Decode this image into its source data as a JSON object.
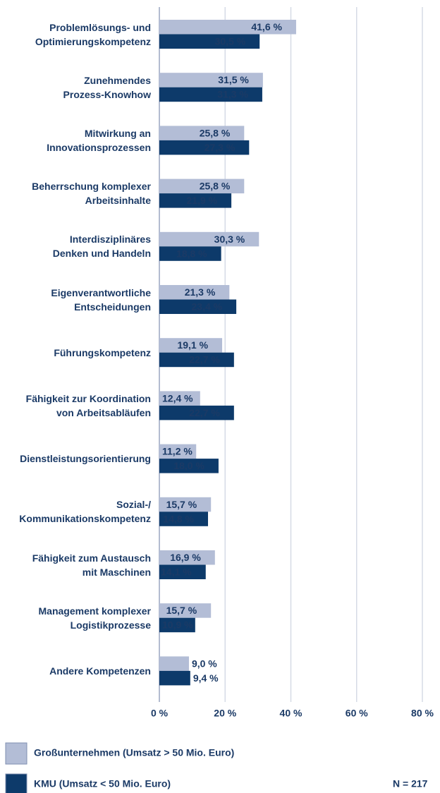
{
  "chart_data": {
    "type": "hbar",
    "categories": [
      "Problemlösungs- und\nOptimierungskompetenz",
      "Zunehmendes\nProzess-Knowhow",
      "Mitwirkung an\nInnovationsprozessen",
      "Beherrschung komplexer\nArbeitsinhalte",
      "Interdisziplinäres\nDenken und Handeln",
      "Eigenverantwortliche\nEntscheidungen",
      "Führungskompetenz",
      "Fähigkeit zur Koordination\nvon Arbeitsabläufen",
      "Dienstleistungsorientierung",
      "Sozial-/\nKommunikationskompetenz",
      "Fähigkeit zum Austausch\nmit Maschinen",
      "Management komplexer\nLogistikprozesse",
      "Andere Kompetenzen"
    ],
    "series": [
      {
        "name": "Großunternehmen (Umsatz > 50 Mio. Euro)",
        "color": "#b3bdd6",
        "values": [
          41.6,
          31.5,
          25.8,
          25.8,
          30.3,
          21.3,
          19.1,
          12.4,
          11.2,
          15.7,
          16.9,
          15.7,
          9.0
        ],
        "value_labels": [
          "41,6 %",
          "31,5 %",
          "25,8 %",
          "25,8 %",
          "30,3 %",
          "21,3 %",
          "19,1 %",
          "12,4 %",
          "11,2 %",
          "15,7 %",
          "16,9 %",
          "15,7 %",
          "9,0 %"
        ]
      },
      {
        "name": "KMU (Umsatz < 50 Mio. Euro)",
        "color": "#0d3a6a",
        "values": [
          30.5,
          31.3,
          27.3,
          21.9,
          18.8,
          23.4,
          22.7,
          22.7,
          18.0,
          14.8,
          14.1,
          10.9,
          9.4
        ],
        "value_labels": [
          "30,5 %",
          "31,3 %",
          "27,3 %",
          "21,9 %",
          "18,8 %",
          "23,4 %",
          "22,7 %",
          "22,7 %",
          "18,0 %",
          "14,8 %",
          "14,1 %",
          "10,9 %",
          "9,4 %"
        ]
      }
    ],
    "xlim": [
      0,
      80
    ],
    "xticks": [
      {
        "value": 0,
        "label": "0 %"
      },
      {
        "value": 20,
        "label": "20 %"
      },
      {
        "value": 40,
        "label": "40 %"
      },
      {
        "value": 60,
        "label": "60 %"
      },
      {
        "value": 80,
        "label": "80 %"
      }
    ],
    "grid": true,
    "note": "N = 217"
  }
}
